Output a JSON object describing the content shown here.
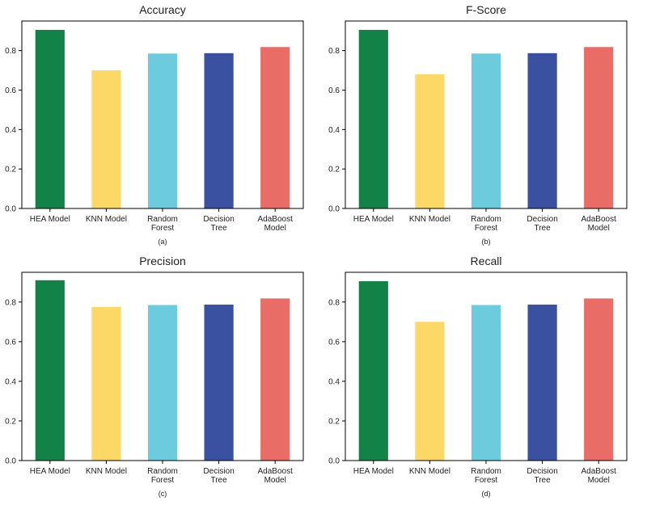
{
  "colors": {
    "bars": [
      "#138246",
      "#fcd867",
      "#6ccbdc",
      "#3a50a0",
      "#ea6c66"
    ],
    "axis": "#000000",
    "text": "#222222"
  },
  "chart_data": [
    {
      "type": "bar",
      "title": "Accuracy",
      "caption": "(a)",
      "categories": [
        "HEA Model",
        "KNN Model",
        "Random Forest",
        "Decision Tree",
        "AdaBoost Model"
      ],
      "values": [
        0.905,
        0.7,
        0.785,
        0.787,
        0.818
      ],
      "ylim": [
        0,
        0.95
      ],
      "yticks": [
        "0.0",
        "0.2",
        "0.4",
        "0.6",
        "0.8"
      ],
      "grid": false
    },
    {
      "type": "bar",
      "title": "F-Score",
      "caption": "(b)",
      "categories": [
        "HEA Model",
        "KNN Model",
        "Random Forest",
        "Decision Tree",
        "AdaBoost Model"
      ],
      "values": [
        0.905,
        0.68,
        0.785,
        0.787,
        0.818
      ],
      "ylim": [
        0,
        0.95
      ],
      "yticks": [
        "0.0",
        "0.2",
        "0.4",
        "0.6",
        "0.8"
      ],
      "grid": false
    },
    {
      "type": "bar",
      "title": "Precision",
      "caption": "(c)",
      "categories": [
        "HEA Model",
        "KNN Model",
        "Random Forest",
        "Decision Tree",
        "AdaBoost Model"
      ],
      "values": [
        0.91,
        0.775,
        0.785,
        0.787,
        0.818
      ],
      "ylim": [
        0,
        0.95
      ],
      "yticks": [
        "0.0",
        "0.2",
        "0.4",
        "0.6",
        "0.8"
      ],
      "grid": false
    },
    {
      "type": "bar",
      "title": "Recall",
      "caption": "(d)",
      "categories": [
        "HEA Model",
        "KNN Model",
        "Random Forest",
        "Decision Tree",
        "AdaBoost Model"
      ],
      "values": [
        0.905,
        0.7,
        0.785,
        0.787,
        0.818
      ],
      "ylim": [
        0,
        0.95
      ],
      "yticks": [
        "0.0",
        "0.2",
        "0.4",
        "0.6",
        "0.8"
      ],
      "grid": false
    }
  ]
}
